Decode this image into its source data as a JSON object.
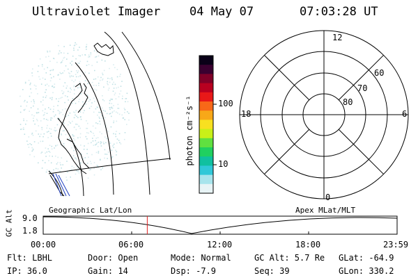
{
  "header": {
    "instrument": "Ultraviolet Imager",
    "date": "04 May 07",
    "time": "07:03:28 UT"
  },
  "colorbar": {
    "unit_label": "photon cm⁻²s⁻¹",
    "ticks": [
      "100",
      "10"
    ],
    "colors_top_to_bottom": [
      "#0a0018",
      "#3a0030",
      "#800028",
      "#b80020",
      "#e81818",
      "#f86818",
      "#f8a818",
      "#f8e020",
      "#c8f018",
      "#60e040",
      "#20d060",
      "#10c0a0",
      "#30c8d8",
      "#a8e4ec",
      "#e8f4f6"
    ]
  },
  "polar_plot": {
    "mlt_labels": {
      "top": "12",
      "right": "6",
      "bottom": "0",
      "left": "18"
    },
    "lat_labels": [
      "60",
      "70",
      "80"
    ]
  },
  "geo_label": "Geographic Lat/Lon",
  "apex_label": "Apex MLat/MLT",
  "altitude_plot": {
    "axis_label": "GC Alt",
    "ymax": "9.0",
    "ymin": "1.8",
    "x_ticks": [
      "00:00",
      "06:00",
      "12:00",
      "18:00",
      "23:59"
    ],
    "marker_color": "#e02020"
  },
  "status": {
    "flt": "Flt: LBHL",
    "ip": "IP: 36.0",
    "door": "Door: Open",
    "gain": "Gain: 14",
    "mode": "Mode: Normal",
    "dsp": "Dsp:   -7.9",
    "gc_alt": "GC Alt: 5.7 Re",
    "seq": "Seq: 39",
    "glat": "GLat: -64.9",
    "glon": "GLon: 330.2"
  }
}
